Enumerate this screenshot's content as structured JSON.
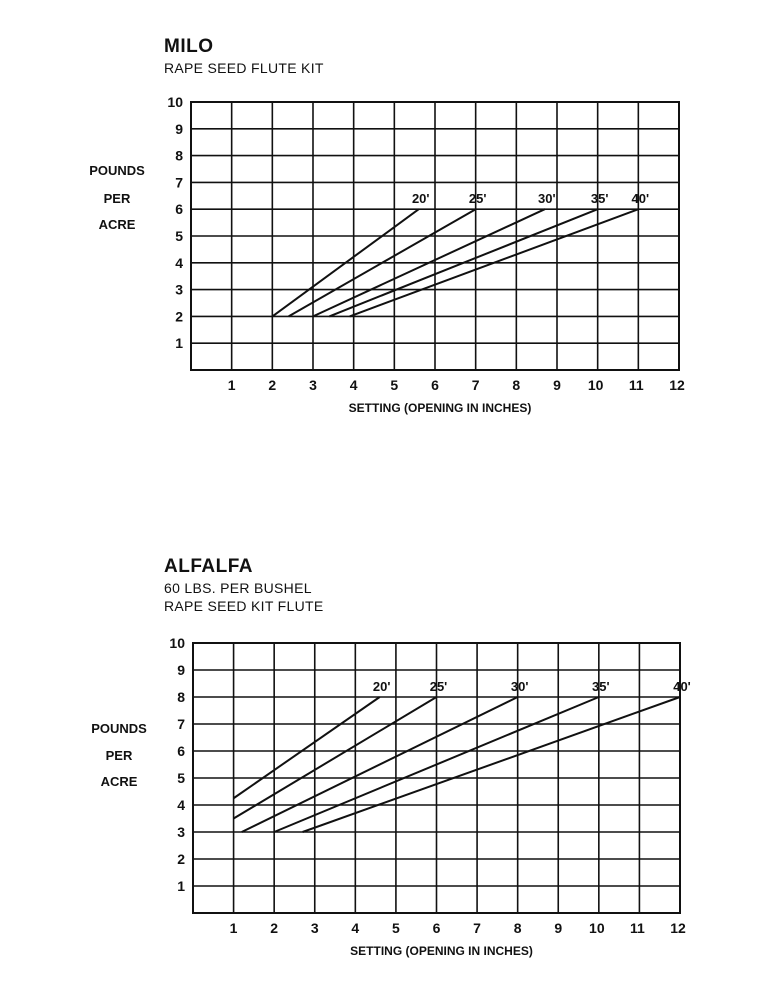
{
  "chart_data": [
    {
      "type": "line",
      "title": "MILO",
      "subtitle": [
        "RAPE SEED FLUTE KIT"
      ],
      "xlabel": "SETTING (OPENING IN INCHES)",
      "ylabel": [
        "POUNDS",
        "PER",
        "ACRE"
      ],
      "xlim": [
        0,
        12
      ],
      "ylim": [
        0,
        10
      ],
      "xticks": [
        1,
        2,
        3,
        4,
        5,
        6,
        7,
        8,
        9,
        10,
        11,
        12
      ],
      "yticks": [
        1,
        2,
        3,
        4,
        5,
        6,
        7,
        8,
        9,
        10
      ],
      "grid": true,
      "legend": "inline labels at line ends",
      "series": [
        {
          "name": "20'",
          "x": [
            2.0,
            5.6
          ],
          "y": [
            2,
            6
          ]
        },
        {
          "name": "25'",
          "x": [
            2.4,
            7.0
          ],
          "y": [
            2,
            6
          ]
        },
        {
          "name": "30'",
          "x": [
            3.0,
            8.7
          ],
          "y": [
            2,
            6
          ]
        },
        {
          "name": "35'",
          "x": [
            3.4,
            10.0
          ],
          "y": [
            2,
            6
          ]
        },
        {
          "name": "40'",
          "x": [
            3.9,
            11.0
          ],
          "y": [
            2,
            6
          ]
        }
      ]
    },
    {
      "type": "line",
      "title": "ALFALFA",
      "subtitle": [
        "60 LBS. PER BUSHEL",
        "RAPE SEED KIT FLUTE"
      ],
      "xlabel": "SETTING (OPENING IN INCHES)",
      "ylabel": [
        "POUNDS",
        "PER",
        "ACRE"
      ],
      "xlim": [
        0,
        12
      ],
      "ylim": [
        0,
        10
      ],
      "xticks": [
        1,
        2,
        3,
        4,
        5,
        6,
        7,
        8,
        9,
        10,
        11,
        12
      ],
      "yticks": [
        1,
        2,
        3,
        4,
        5,
        6,
        7,
        8,
        9,
        10
      ],
      "grid": true,
      "legend": "inline labels at line ends",
      "series": [
        {
          "name": "20'",
          "x": [
            1.0,
            4.6
          ],
          "y": [
            4.25,
            8
          ]
        },
        {
          "name": "25'",
          "x": [
            1.0,
            6.0
          ],
          "y": [
            3.5,
            8
          ]
        },
        {
          "name": "30'",
          "x": [
            1.2,
            8.0
          ],
          "y": [
            3,
            8
          ]
        },
        {
          "name": "35'",
          "x": [
            2.0,
            10.0
          ],
          "y": [
            3,
            8
          ]
        },
        {
          "name": "40'",
          "x": [
            2.7,
            12.0
          ],
          "y": [
            3,
            8
          ]
        }
      ]
    }
  ]
}
